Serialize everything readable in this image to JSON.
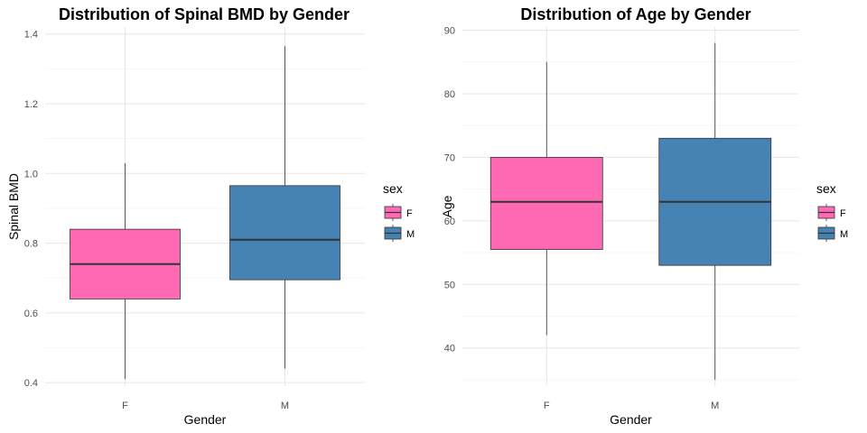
{
  "chart_data": [
    {
      "type": "box",
      "title": "Distribution of Spinal BMD by Gender",
      "xlabel": "Gender",
      "ylabel": "Spinal BMD",
      "ylim": [
        0.39,
        1.42
      ],
      "yticks": [
        0.4,
        0.6,
        0.8,
        1.0,
        1.2,
        1.4
      ],
      "ytick_labels": [
        "0.4",
        "0.6",
        "0.8",
        "1.0",
        "1.2",
        "1.4"
      ],
      "categories": [
        "F",
        "M"
      ],
      "boxes": [
        {
          "category": "F",
          "whisker_low": 0.41,
          "q1": 0.64,
          "median": 0.74,
          "q3": 0.84,
          "whisker_high": 1.03,
          "color": "#FF69B4"
        },
        {
          "category": "M",
          "whisker_low": 0.44,
          "q1": 0.695,
          "median": 0.81,
          "q3": 0.965,
          "whisker_high": 1.365,
          "color": "#4682B4"
        }
      ],
      "legend": {
        "title": "sex",
        "entries": [
          {
            "label": "F",
            "color": "#FF69B4"
          },
          {
            "label": "M",
            "color": "#4682B4"
          }
        ]
      },
      "grid": true
    },
    {
      "type": "box",
      "title": "Distribution of Age by Gender",
      "xlabel": "Gender",
      "ylabel": "Age",
      "ylim": [
        34,
        90.5
      ],
      "yticks": [
        40,
        50,
        60,
        70,
        80,
        90
      ],
      "ytick_labels": [
        "40",
        "50",
        "60",
        "70",
        "80",
        "90"
      ],
      "categories": [
        "F",
        "M"
      ],
      "boxes": [
        {
          "category": "F",
          "whisker_low": 42,
          "q1": 55.5,
          "median": 63,
          "q3": 70,
          "whisker_high": 85,
          "color": "#FF69B4"
        },
        {
          "category": "M",
          "whisker_low": 35,
          "q1": 53,
          "median": 63,
          "q3": 73,
          "whisker_high": 88,
          "color": "#4682B4"
        }
      ],
      "legend": {
        "title": "sex",
        "entries": [
          {
            "label": "F",
            "color": "#FF69B4"
          },
          {
            "label": "M",
            "color": "#4682B4"
          }
        ]
      },
      "grid": true
    }
  ]
}
